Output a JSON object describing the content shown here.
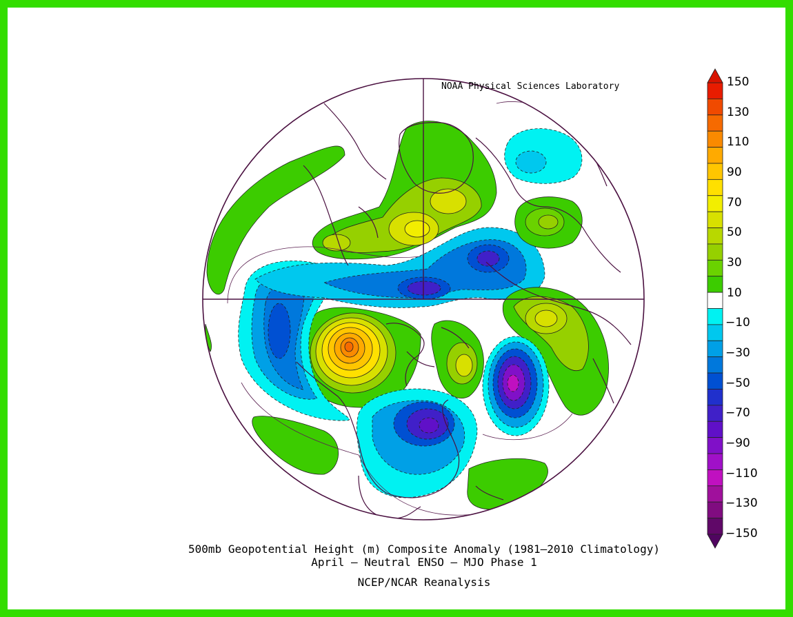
{
  "credit_top": "NOAA Physical Sciences Laboratory",
  "title_line1": "500mb Geopotential Height (m) Composite Anomaly (1981–2010 Climatology)",
  "title_line2": "April – Neutral ENSO – MJO Phase 1",
  "credit_bottom": "NCEP/NCAR Reanalysis",
  "colorbar": {
    "labels": [
      "150",
      "130",
      "110",
      "90",
      "70",
      "50",
      "30",
      "10",
      "−10",
      "−30",
      "−50",
      "−70",
      "−90",
      "−110",
      "−130",
      "−150"
    ],
    "bins": [
      {
        "range": "130 to 150",
        "color": "#e81c00"
      },
      {
        "range": "120 to 130",
        "color": "#f04a00"
      },
      {
        "range": "110 to 120",
        "color": "#f66a00"
      },
      {
        "range": "100 to 110",
        "color": "#fa8a00"
      },
      {
        "range": "90 to 100",
        "color": "#ffaa00"
      },
      {
        "range": "80 to 90",
        "color": "#ffc600"
      },
      {
        "range": "70 to 80",
        "color": "#ffe000"
      },
      {
        "range": "60 to 70",
        "color": "#f2ee00"
      },
      {
        "range": "50 to 60",
        "color": "#d8e000"
      },
      {
        "range": "40 to 50",
        "color": "#b8d800"
      },
      {
        "range": "30 to 40",
        "color": "#96d000"
      },
      {
        "range": "20 to 30",
        "color": "#6ad200"
      },
      {
        "range": "10 to 20",
        "color": "#3ccc00"
      },
      {
        "range": "-10 to 10",
        "color": "#ffffff"
      },
      {
        "range": "-20 to -10",
        "color": "#00f2f2"
      },
      {
        "range": "-30 to -20",
        "color": "#00c8ee"
      },
      {
        "range": "-40 to -30",
        "color": "#00a0e6"
      },
      {
        "range": "-50 to -40",
        "color": "#0078dc"
      },
      {
        "range": "-60 to -50",
        "color": "#0050d2"
      },
      {
        "range": "-70 to -60",
        "color": "#2030cc"
      },
      {
        "range": "-80 to -70",
        "color": "#4020c8"
      },
      {
        "range": "-90 to -80",
        "color": "#6010c8"
      },
      {
        "range": "-100 to -90",
        "color": "#8010c8"
      },
      {
        "range": "-110 to -100",
        "color": "#a010c8"
      },
      {
        "range": "-120 to -110",
        "color": "#c010c0"
      },
      {
        "range": "-130 to -120",
        "color": "#a0109c"
      },
      {
        "range": "-140 to -130",
        "color": "#800c80"
      },
      {
        "range": "-150 to -140",
        "color": "#600868"
      }
    ]
  },
  "anomaly_centers": [
    {
      "name": "northeast-pacific-ridge",
      "value": 120,
      "sign": "positive"
    },
    {
      "name": "greenland-ridge",
      "value": 60,
      "sign": "positive"
    },
    {
      "name": "europe-ridge",
      "value": 40,
      "sign": "positive"
    },
    {
      "name": "east-asia-ridge",
      "value": 60,
      "sign": "positive"
    },
    {
      "name": "siberia-ridge",
      "value": 50,
      "sign": "positive"
    },
    {
      "name": "north-pacific-trough",
      "value": -60,
      "sign": "negative"
    },
    {
      "name": "eastern-us-trough",
      "value": -80,
      "sign": "negative"
    },
    {
      "name": "north-atlantic-trough",
      "value": -100,
      "sign": "negative"
    },
    {
      "name": "arctic-siberian-trough",
      "value": -70,
      "sign": "negative"
    },
    {
      "name": "north-africa-trough",
      "value": -20,
      "sign": "negative"
    }
  ],
  "colors": {
    "frame": "#33dd00",
    "coast": "#4a1040",
    "contour": "#2a2a2a"
  }
}
